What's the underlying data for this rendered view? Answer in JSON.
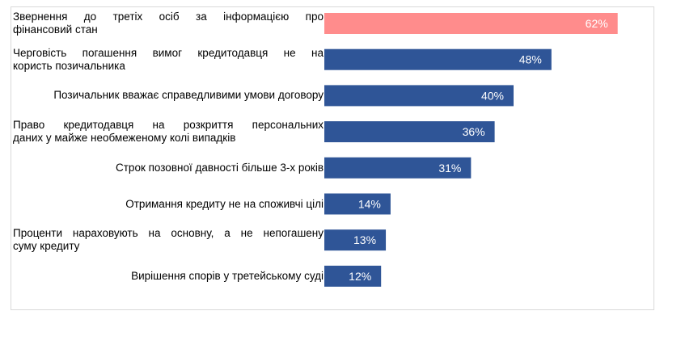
{
  "chart_data": {
    "type": "bar",
    "orientation": "horizontal",
    "xlim": [
      0,
      100
    ],
    "categories": [
      "Звернення до третіх осіб за інформацією про фінансовий стан",
      "Черговість погашення вимог кредитодавця не на користь позичальника",
      "Позичальник вважає справедливими умови договору",
      "Право кредитодавця на розкриття персональних даних у майже необмеженому колі випадків",
      "Строк позовної давності більше 3-х років",
      "Отримання кредиту не на споживчі цілі",
      "Проценти нараховують на основну, а не непогашену суму кредиту",
      "Вирішення спорів у третейському суді"
    ],
    "values": [
      62,
      48,
      40,
      36,
      31,
      14,
      13,
      12
    ],
    "value_labels": [
      "62%",
      "48%",
      "40%",
      "36%",
      "31%",
      "14%",
      "13%",
      "12%"
    ],
    "label_lines": [
      [
        "Звернення до третіх осіб за інформацією про",
        "фінансовий стан"
      ],
      [
        "Черговість погашення вимог кредитодавця не на",
        "користь позичальника"
      ],
      [
        "Позичальник вважає справедливими умови договору"
      ],
      [
        "Право кредитодавця на розкриття персональних",
        "даних у   майже необмеженому колі випадків"
      ],
      [
        "Строк позовної давності більше 3-х років"
      ],
      [
        "Отримання кредиту не на споживчі цілі"
      ],
      [
        "Проценти нараховують на основну, а не непогашену",
        "суму кредиту"
      ],
      [
        "Вирішення спорів у третейському суді"
      ]
    ],
    "colors": [
      "#ff8c8c",
      "#2f5597",
      "#2f5597",
      "#2f5597",
      "#2f5597",
      "#2f5597",
      "#2f5597",
      "#2f5597"
    ],
    "title": "",
    "xlabel": "",
    "ylabel": "",
    "grid": false,
    "legend": "none"
  }
}
